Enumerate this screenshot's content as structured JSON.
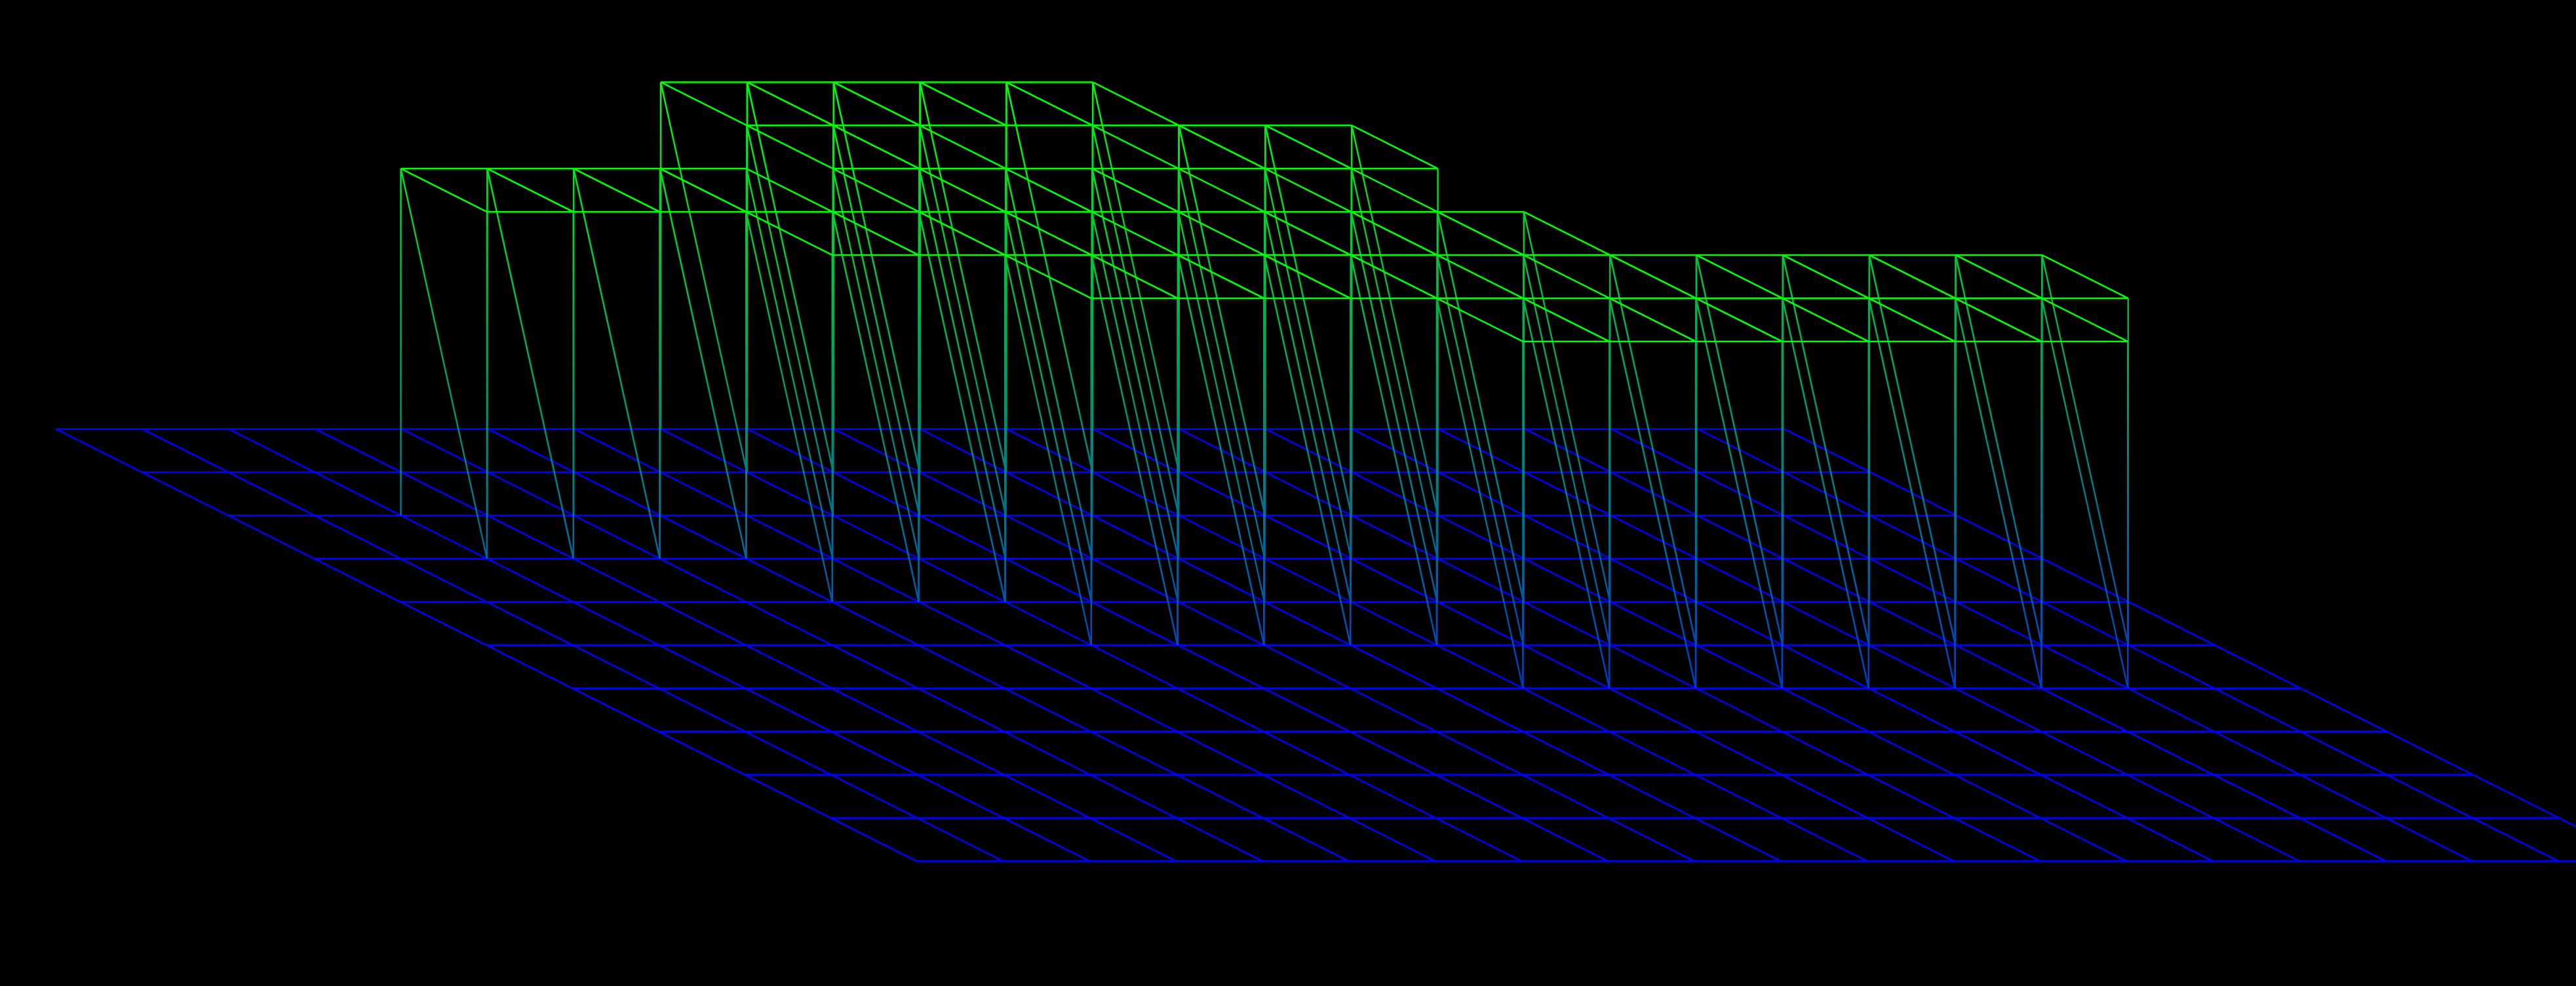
{
  "scene": {
    "type": "wireframe-heightmap",
    "background_color": "#000000",
    "floor_color": "#0000ff",
    "top_color": "#00ff00",
    "grid": {
      "cols": 20,
      "rows": 10
    },
    "raised_cells": [
      [
        2,
        2
      ],
      [
        3,
        2
      ],
      [
        4,
        2
      ],
      [
        5,
        2
      ],
      [
        5,
        3
      ],
      [
        6,
        3
      ],
      [
        7,
        3
      ],
      [
        8,
        3
      ],
      [
        8,
        0
      ],
      [
        9,
        0
      ],
      [
        10,
        0
      ],
      [
        11,
        0
      ],
      [
        11,
        1
      ],
      [
        12,
        1
      ],
      [
        13,
        1
      ],
      [
        12,
        2
      ],
      [
        12,
        3
      ],
      [
        13,
        3
      ],
      [
        13,
        4
      ],
      [
        14,
        4
      ],
      [
        15,
        4
      ],
      [
        16,
        4
      ],
      [
        17,
        4
      ],
      [
        18,
        4
      ],
      [
        7,
        0
      ],
      [
        7,
        1
      ],
      [
        8,
        1
      ],
      [
        8,
        2
      ],
      [
        9,
        2
      ],
      [
        10,
        2
      ],
      [
        10,
        3
      ],
      [
        11,
        3
      ],
      [
        11,
        4
      ],
      [
        11,
        5
      ],
      [
        12,
        5
      ],
      [
        13,
        5
      ],
      [
        14,
        5
      ],
      [
        15,
        5
      ],
      [
        16,
        5
      ],
      [
        17,
        5
      ],
      [
        7,
        2
      ],
      [
        7,
        4
      ],
      [
        8,
        4
      ],
      [
        9,
        4
      ],
      [
        10,
        4
      ]
    ]
  }
}
